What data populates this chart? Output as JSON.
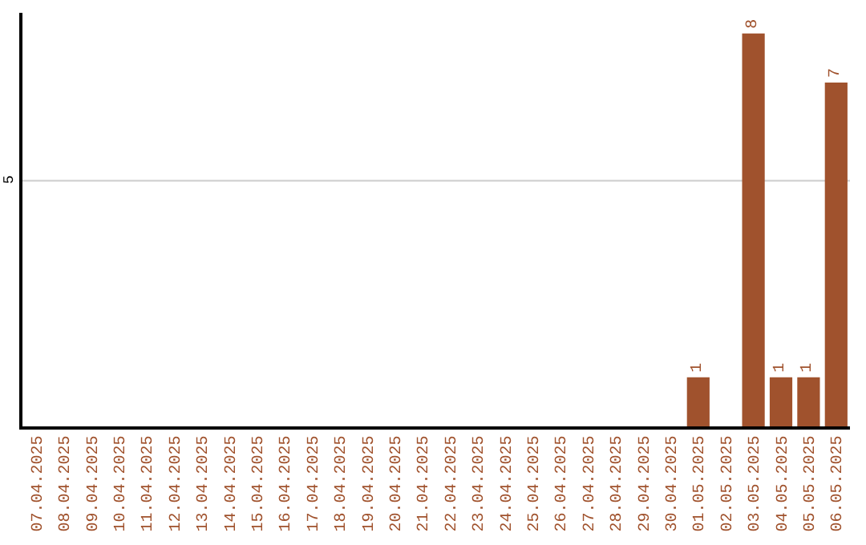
{
  "chart_data": {
    "type": "bar",
    "categories": [
      "07.04.2025",
      "08.04.2025",
      "09.04.2025",
      "10.04.2025",
      "11.04.2025",
      "12.04.2025",
      "13.04.2025",
      "14.04.2025",
      "15.04.2025",
      "16.04.2025",
      "17.04.2025",
      "18.04.2025",
      "19.04.2025",
      "20.04.2025",
      "21.04.2025",
      "22.04.2025",
      "23.04.2025",
      "24.04.2025",
      "25.04.2025",
      "26.04.2025",
      "27.04.2025",
      "28.04.2025",
      "29.04.2025",
      "30.04.2025",
      "01.05.2025",
      "02.05.2025",
      "03.05.2025",
      "04.05.2025",
      "05.05.2025",
      "06.05.2025"
    ],
    "values": [
      null,
      null,
      null,
      null,
      null,
      null,
      null,
      null,
      null,
      null,
      null,
      null,
      null,
      null,
      null,
      null,
      null,
      null,
      null,
      null,
      null,
      null,
      null,
      null,
      1,
      null,
      8,
      1,
      1,
      7
    ],
    "data_labels": true,
    "color": "#a0522d",
    "ref_lines": [
      {
        "axis": "y",
        "value": 5,
        "label": "5",
        "color": "#cccccc"
      }
    ],
    "legend": false
  }
}
